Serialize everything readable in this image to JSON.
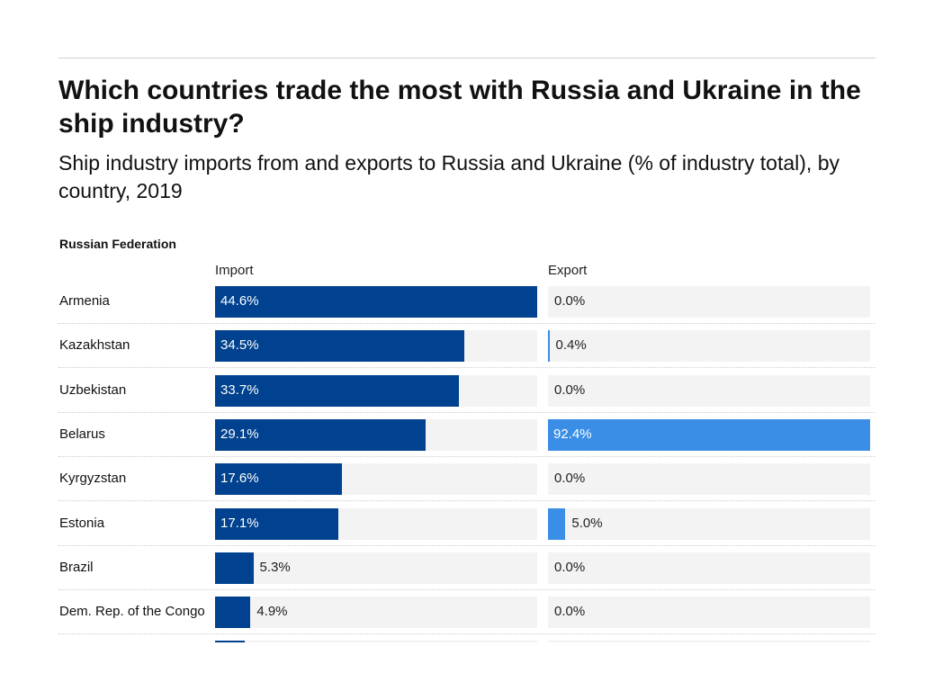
{
  "chart_data": {
    "type": "bar",
    "title": "Which countries trade the most with Russia and Ukraine in the ship industry?",
    "subtitle": "Ship industry imports from and exports to Russia and Ukraine (% of industry total), by country, 2019",
    "section": "Russian Federation",
    "columns": {
      "import": "Import",
      "export": "Export"
    },
    "colors": {
      "import": "#00428f",
      "export": "#3a8ee6",
      "track": "#f3f3f3"
    },
    "categories": [
      "Armenia",
      "Kazakhstan",
      "Uzbekistan",
      "Belarus",
      "Kyrgyzstan",
      "Estonia",
      "Brazil",
      "Dem. Rep. of the Congo",
      ""
    ],
    "series": [
      {
        "name": "Import",
        "values": [
          44.6,
          34.5,
          33.7,
          29.1,
          17.6,
          17.1,
          5.3,
          4.9,
          4.1
        ],
        "labels": [
          "44.6%",
          "34.5%",
          "33.7%",
          "29.1%",
          "17.6%",
          "17.1%",
          "5.3%",
          "4.9%",
          ""
        ]
      },
      {
        "name": "Export",
        "values": [
          0.0,
          0.4,
          0.0,
          92.4,
          0.0,
          5.0,
          0.0,
          0.0,
          0.0
        ],
        "labels": [
          "0.0%",
          "0.4%",
          "0.0%",
          "92.4%",
          "0.0%",
          "5.0%",
          "0.0%",
          "0.0%",
          ""
        ]
      }
    ]
  }
}
